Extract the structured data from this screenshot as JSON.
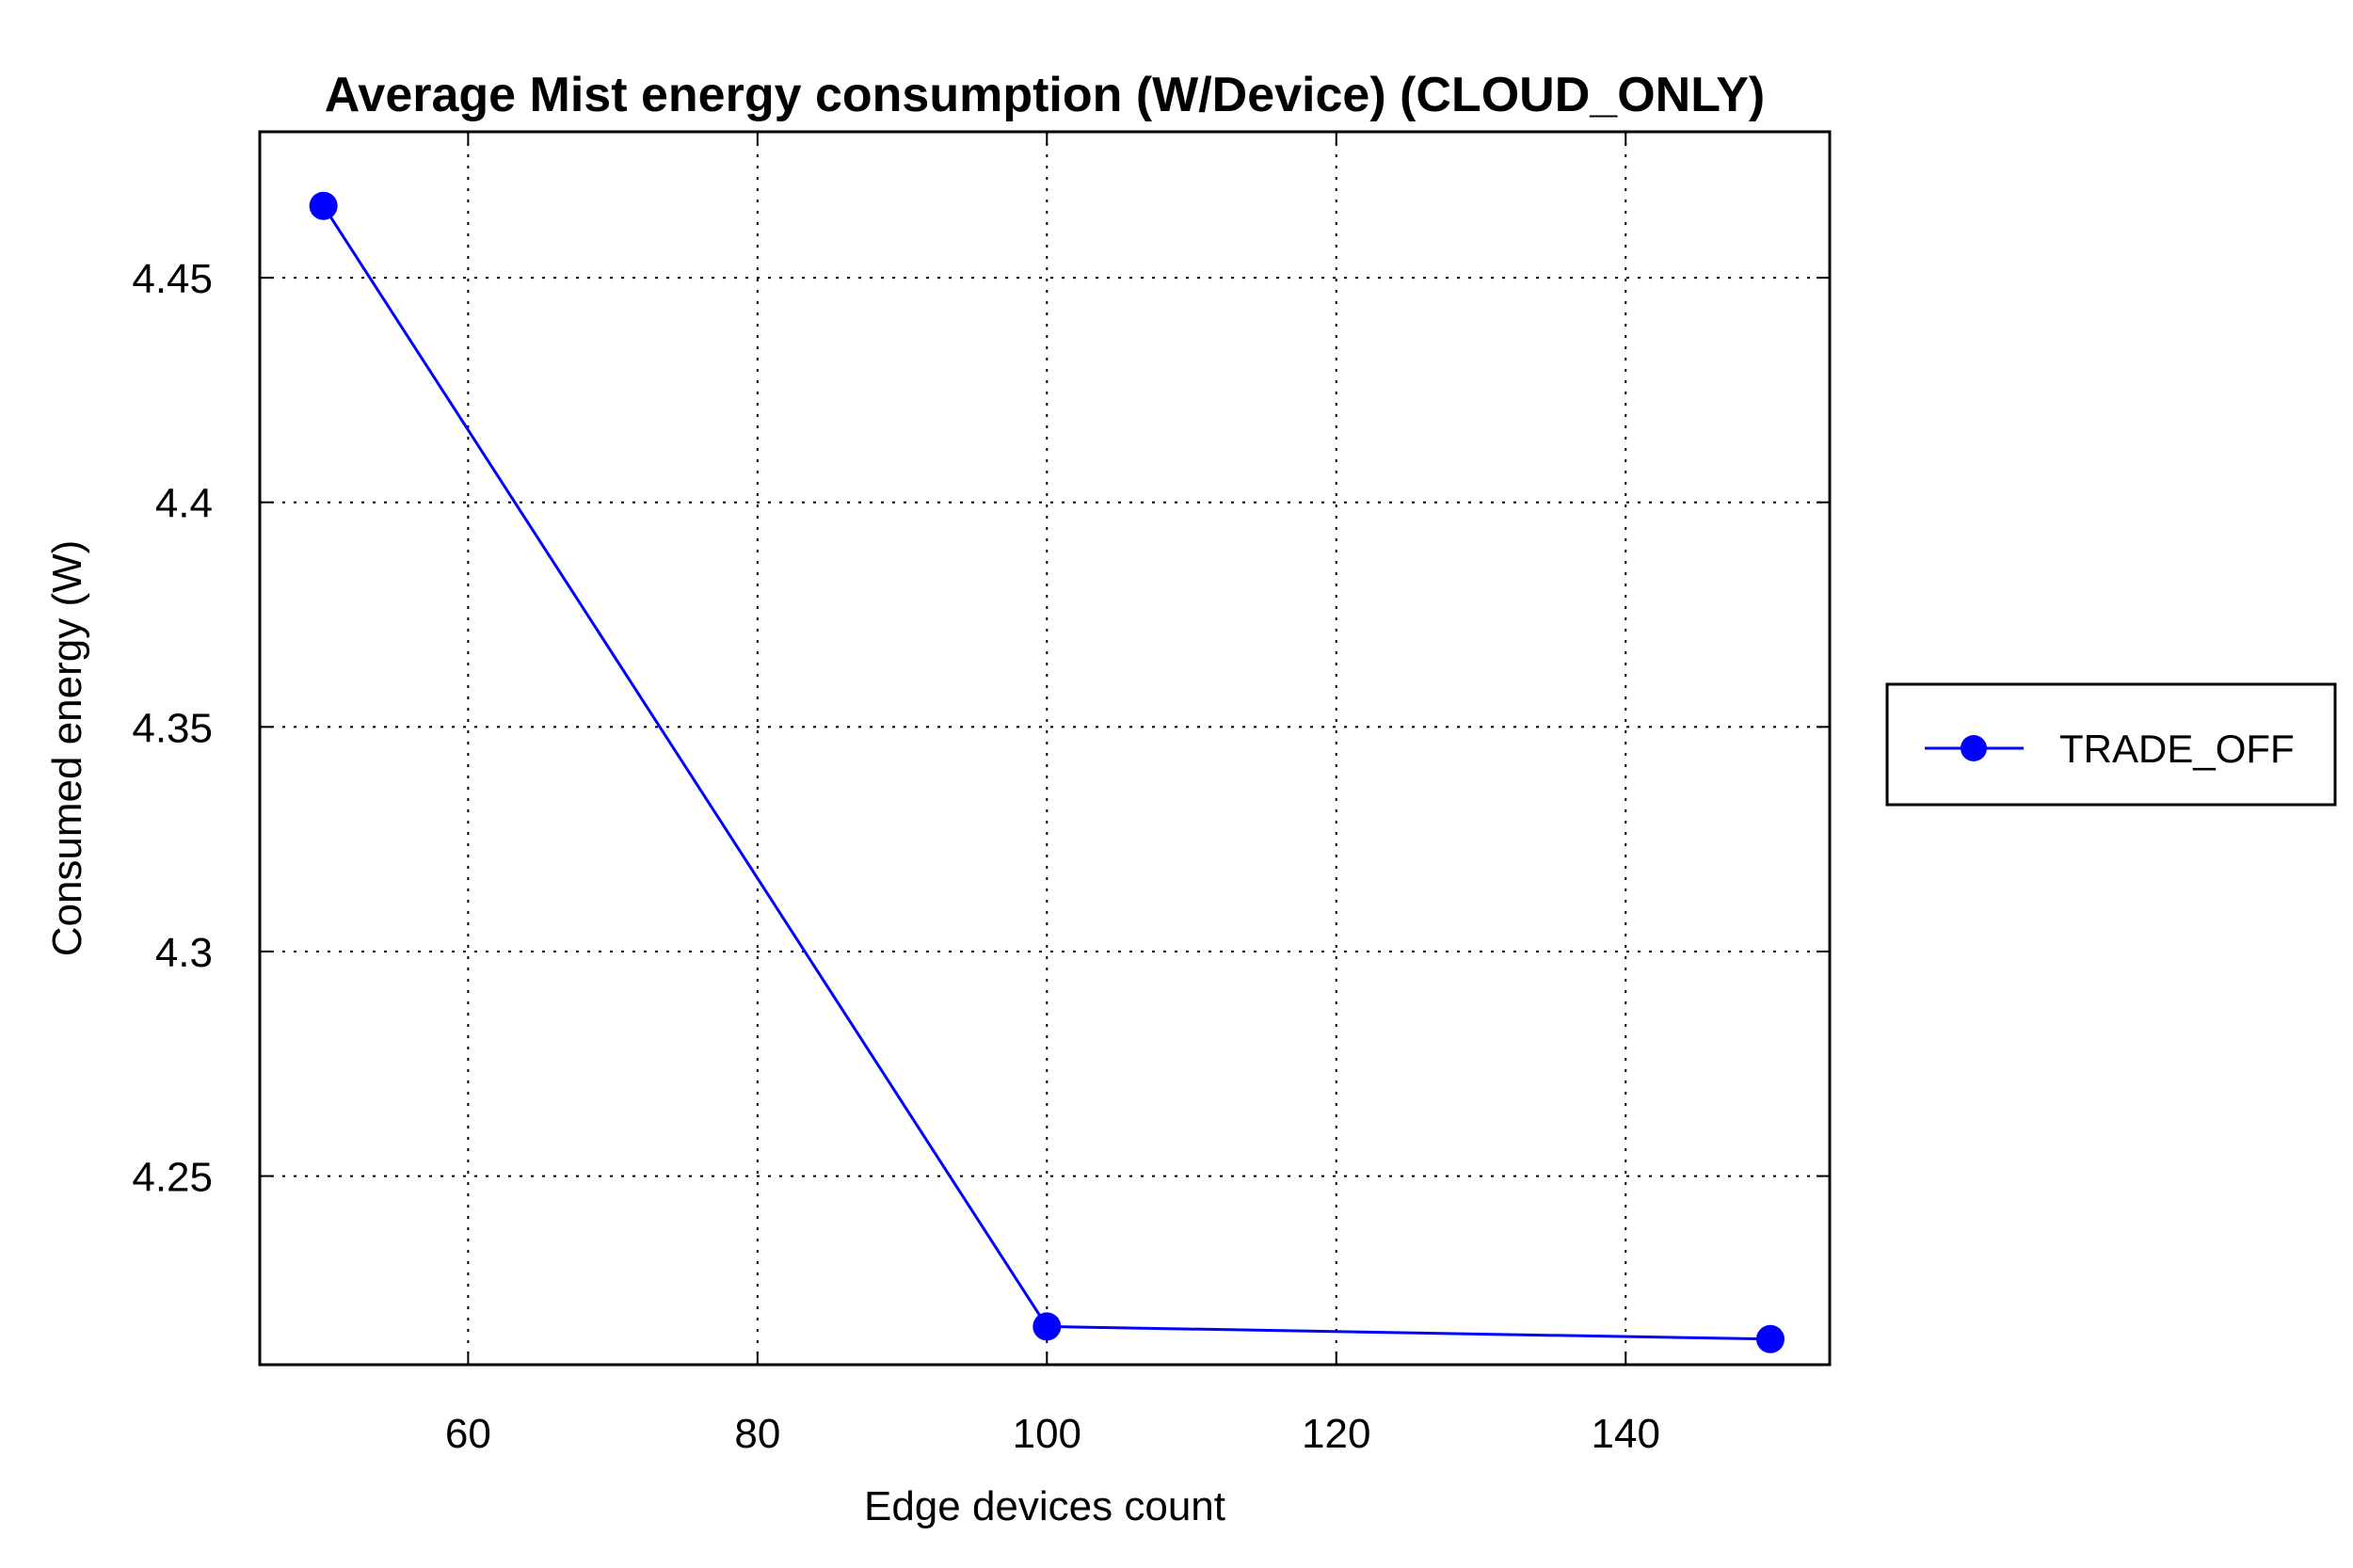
{
  "chart_data": {
    "type": "line",
    "title": "Average Mist energy consumption (W/Device) (CLOUD_ONLY)",
    "xlabel": "Edge devices count",
    "ylabel": "Consumed energy (W)",
    "xlim": [
      45.6,
      154.1
    ],
    "ylim": [
      4.208,
      4.4825
    ],
    "xticks": [
      60,
      80,
      100,
      120,
      140
    ],
    "xtick_labels": [
      "60",
      "80",
      "100",
      "120",
      "140"
    ],
    "yticks": [
      4.25,
      4.3,
      4.35,
      4.4,
      4.45
    ],
    "ytick_labels": [
      "4.25",
      "4.3",
      "4.35",
      "4.4",
      "4.45"
    ],
    "grid": true,
    "legend_position": "outside-right",
    "series": [
      {
        "name": "TRADE_OFF",
        "color": "#0000ff",
        "marker": "circle",
        "x": [
          50,
          100,
          150
        ],
        "y": [
          4.466,
          4.2165,
          4.2137
        ]
      }
    ]
  }
}
